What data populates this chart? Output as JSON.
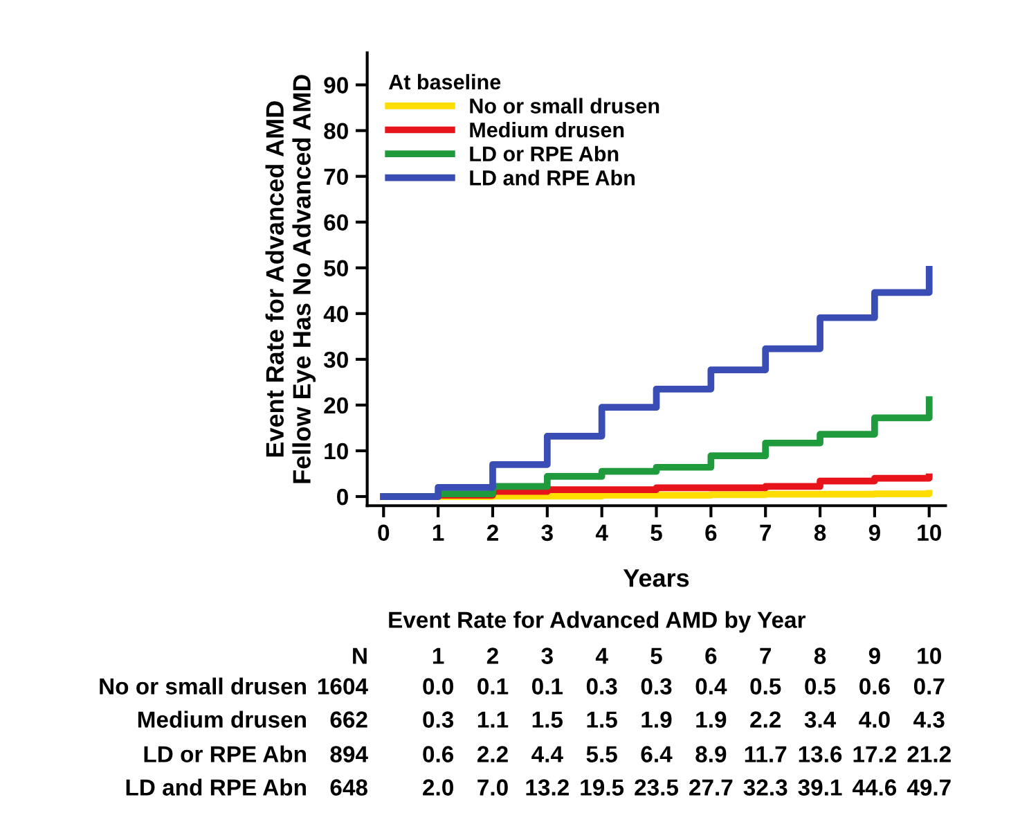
{
  "chart_data": {
    "type": "step",
    "xlabel": "Years",
    "ylabel": "Event Rate for Advanced AMD\nFellow Eye Has No Advanced AMD",
    "legend_title": "At baseline",
    "legend": "top left",
    "x": [
      0,
      1,
      2,
      3,
      4,
      5,
      6,
      7,
      8,
      9,
      10
    ],
    "xlim": [
      -0.3,
      10.3
    ],
    "ylim": [
      -2,
      97
    ],
    "xticks": [
      0,
      1,
      2,
      3,
      4,
      5,
      6,
      7,
      8,
      9,
      10
    ],
    "yticks": [
      0,
      10,
      20,
      30,
      40,
      50,
      60,
      70,
      80,
      90
    ],
    "grid": false,
    "series": [
      {
        "name": "No or small drusen",
        "color": "#ffdd00",
        "values": [
          0,
          0.0,
          0.1,
          0.1,
          0.3,
          0.3,
          0.4,
          0.5,
          0.5,
          0.6,
          0.7
        ]
      },
      {
        "name": "Medium drusen",
        "color": "#e8141b",
        "values": [
          0,
          0.3,
          1.1,
          1.5,
          1.5,
          1.9,
          1.9,
          2.2,
          3.4,
          4.0,
          4.3
        ]
      },
      {
        "name": "LD or RPE Abn",
        "color": "#1f9a3c",
        "values": [
          0,
          0.6,
          2.2,
          4.4,
          5.5,
          6.4,
          8.9,
          11.7,
          13.6,
          17.2,
          21.2
        ]
      },
      {
        "name": "LD and RPE Abn",
        "color": "#3a4db5",
        "values": [
          0,
          2.0,
          7.0,
          13.2,
          19.5,
          23.5,
          27.7,
          32.3,
          39.1,
          44.6,
          49.7
        ]
      }
    ],
    "annotations": [
      "Event Rate for Advanced AMD by Year",
      "N",
      "1",
      "2",
      "3",
      "4",
      "5",
      "6",
      "7",
      "8",
      "9",
      "10",
      "1604",
      "0.0",
      "0.1",
      "0.1",
      "0.3",
      "0.3",
      "0.4",
      "0.5",
      "0.5",
      "0.6",
      "0.7",
      "662",
      "0.3",
      "1.1",
      "1.5",
      "1.5",
      "1.9",
      "1.9",
      "2.2",
      "3.4",
      "4.0",
      "4.3",
      "894",
      "0.6",
      "2.2",
      "4.4",
      "5.5",
      "6.4",
      "8.9",
      "11.7",
      "13.6",
      "17.2",
      "21.2",
      "648",
      "2.0",
      "7.0",
      "13.2",
      "19.5",
      "23.5",
      "27.7",
      "32.3",
      "39.1",
      "44.6",
      "49.7"
    ]
  }
}
